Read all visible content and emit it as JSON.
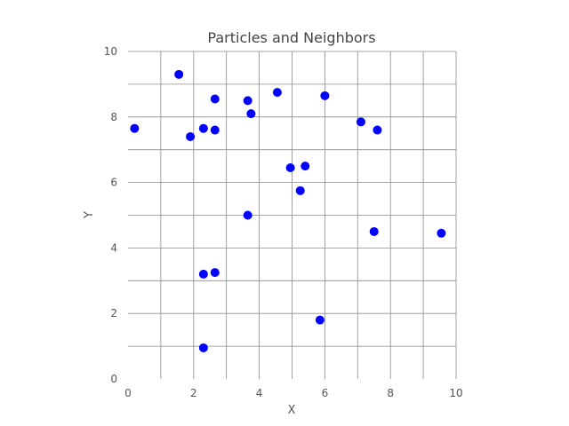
{
  "chart_data": {
    "type": "scatter",
    "title": "Particles and Neighbors",
    "xlabel": "X",
    "ylabel": "Y",
    "xlim": [
      0,
      10
    ],
    "ylim": [
      0,
      10
    ],
    "xticks": [
      "0",
      "2",
      "4",
      "6",
      "8",
      "10"
    ],
    "yticks": [
      "0",
      "2",
      "4",
      "6",
      "8",
      "10"
    ],
    "grid": true,
    "grid_step": 1,
    "point_color": "#0000ff",
    "points": [
      {
        "x": 0.2,
        "y": 7.65
      },
      {
        "x": 1.55,
        "y": 9.3
      },
      {
        "x": 1.9,
        "y": 7.4
      },
      {
        "x": 2.3,
        "y": 7.65
      },
      {
        "x": 2.65,
        "y": 7.6
      },
      {
        "x": 2.65,
        "y": 8.55
      },
      {
        "x": 3.65,
        "y": 8.5
      },
      {
        "x": 3.75,
        "y": 8.1
      },
      {
        "x": 4.55,
        "y": 8.75
      },
      {
        "x": 6.0,
        "y": 8.65
      },
      {
        "x": 7.1,
        "y": 7.85
      },
      {
        "x": 7.6,
        "y": 7.6
      },
      {
        "x": 4.95,
        "y": 6.45
      },
      {
        "x": 5.4,
        "y": 6.5
      },
      {
        "x": 5.25,
        "y": 5.75
      },
      {
        "x": 3.65,
        "y": 5.0
      },
      {
        "x": 7.5,
        "y": 4.5
      },
      {
        "x": 9.55,
        "y": 4.45
      },
      {
        "x": 2.3,
        "y": 3.2
      },
      {
        "x": 2.65,
        "y": 3.25
      },
      {
        "x": 5.85,
        "y": 1.8
      },
      {
        "x": 2.3,
        "y": 0.95
      }
    ]
  }
}
